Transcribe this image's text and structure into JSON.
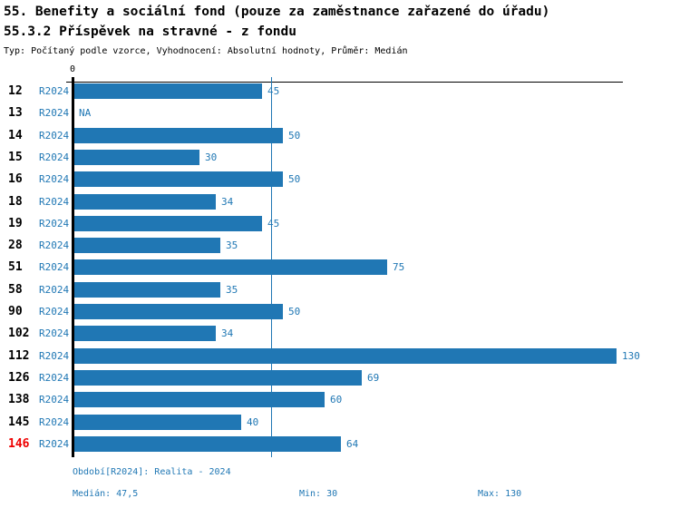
{
  "header": {
    "title_line1": "55. Benefity a sociální fond (pouze za zaměstnance zařazené do úřadu)",
    "title_line2": "55.3.2 Příspěvek na stravné - z fondu",
    "subtitle": "Typ: Počítaný podle vzorce, Vyhodnocení: Absolutní hodnoty, Průměr: Medián"
  },
  "chart_data": {
    "type": "bar",
    "orientation": "horizontal",
    "title": "55.3.2 Příspěvek na stravné - z fondu",
    "categories": [
      "12",
      "13",
      "14",
      "15",
      "16",
      "18",
      "19",
      "28",
      "51",
      "58",
      "90",
      "102",
      "112",
      "126",
      "138",
      "145",
      "146"
    ],
    "series": [
      {
        "name": "R2024",
        "values": [
          45,
          null,
          50,
          30,
          50,
          34,
          45,
          35,
          75,
          35,
          50,
          34,
          130,
          69,
          60,
          40,
          64
        ]
      }
    ],
    "na_label": "NA",
    "axis_zero_label": "0",
    "xlim": [
      0,
      130
    ],
    "median_reference_line": 47.5,
    "highlighted_category": "146",
    "legend_position": "none",
    "grid": false,
    "colors": {
      "bar": "#2077b4",
      "value_label": "#1f77b4",
      "series_label": "#1f77b4",
      "category_label": "#000000",
      "highlight_category": "#ee0000",
      "axis": "#000000",
      "median_line": "#1f77b4"
    }
  },
  "footer": {
    "period": "Období[R2024]: Realita - 2024",
    "median": "Medián: 47,5",
    "min": "Min: 30",
    "max": "Max: 130"
  }
}
